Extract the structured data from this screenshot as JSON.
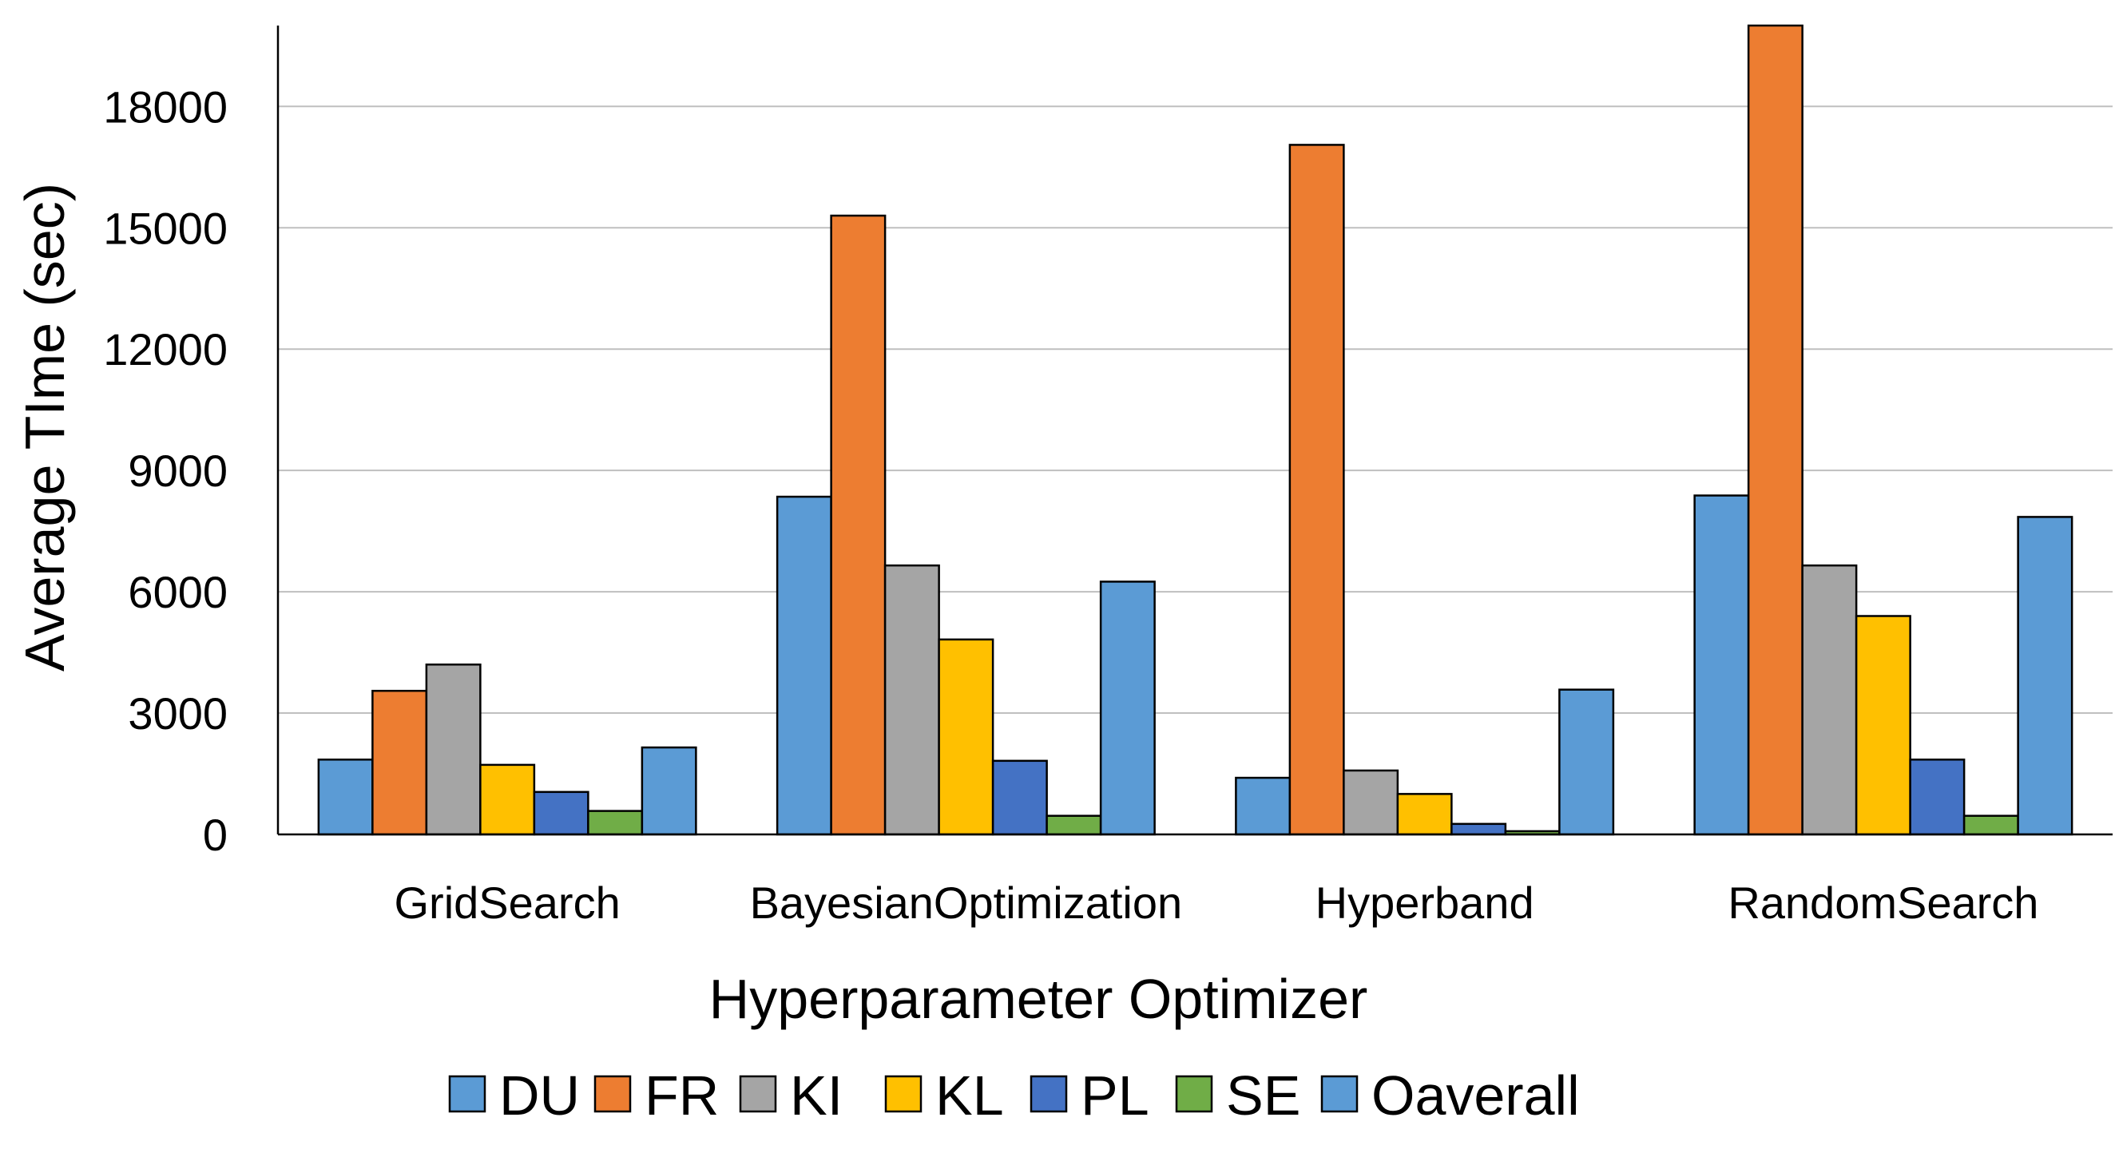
{
  "chart_data": {
    "type": "bar",
    "title": "",
    "xlabel": "Hyperparameter Optimizer",
    "ylabel": "Average TIme (sec)",
    "categories": [
      "GridSearch",
      "BayesianOptimization",
      "Hyperband",
      "RandomSearch"
    ],
    "ylim": [
      0,
      20000
    ],
    "yticks": [
      0,
      3000,
      6000,
      9000,
      12000,
      15000,
      18000
    ],
    "grid": true,
    "legend_position": "bottom",
    "series": [
      {
        "name": "DU",
        "color": "#5B9BD5",
        "values": [
          1850,
          8350,
          1400,
          8380
        ]
      },
      {
        "name": "FR",
        "color": "#ED7D31",
        "values": [
          3550,
          15300,
          17050,
          20000
        ]
      },
      {
        "name": "KI",
        "color": "#A5A5A5",
        "values": [
          4200,
          6650,
          1580,
          6650
        ]
      },
      {
        "name": "KL",
        "color": "#FFC000",
        "values": [
          1720,
          4820,
          1000,
          5400
        ]
      },
      {
        "name": "PL",
        "color": "#4472C4",
        "values": [
          1050,
          1820,
          260,
          1850
        ]
      },
      {
        "name": "SE",
        "color": "#70AD47",
        "values": [
          580,
          460,
          80,
          460
        ]
      },
      {
        "name": "Oaverall",
        "color": "#5B9BD5",
        "values": [
          2150,
          6250,
          3580,
          7850
        ]
      }
    ]
  }
}
